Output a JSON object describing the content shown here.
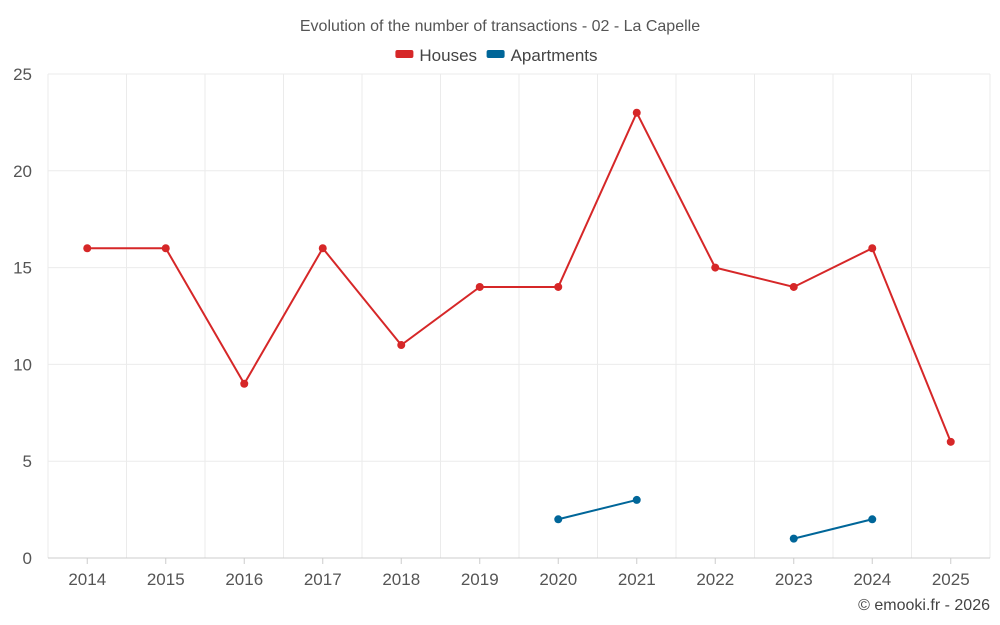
{
  "chart_data": {
    "type": "line",
    "title": "Evolution of the number of transactions - 02 - La Capelle",
    "categories": [
      "2014",
      "2015",
      "2016",
      "2017",
      "2018",
      "2019",
      "2020",
      "2021",
      "2022",
      "2023",
      "2024",
      "2025"
    ],
    "series": [
      {
        "name": "Houses",
        "color": "#d62728",
        "values": [
          16,
          16,
          9,
          16,
          11,
          14,
          14,
          23,
          15,
          14,
          16,
          6
        ]
      },
      {
        "name": "Apartments",
        "color": "#006699",
        "values": [
          null,
          null,
          null,
          null,
          null,
          null,
          2,
          3,
          null,
          1,
          2,
          null
        ]
      }
    ],
    "ylim": [
      0,
      25
    ],
    "yticks": [
      0,
      5,
      10,
      15,
      20,
      25
    ],
    "xlabel": "",
    "ylabel": "",
    "grid": true,
    "legend": "top-center"
  },
  "credit": "© emooki.fr - 2026"
}
